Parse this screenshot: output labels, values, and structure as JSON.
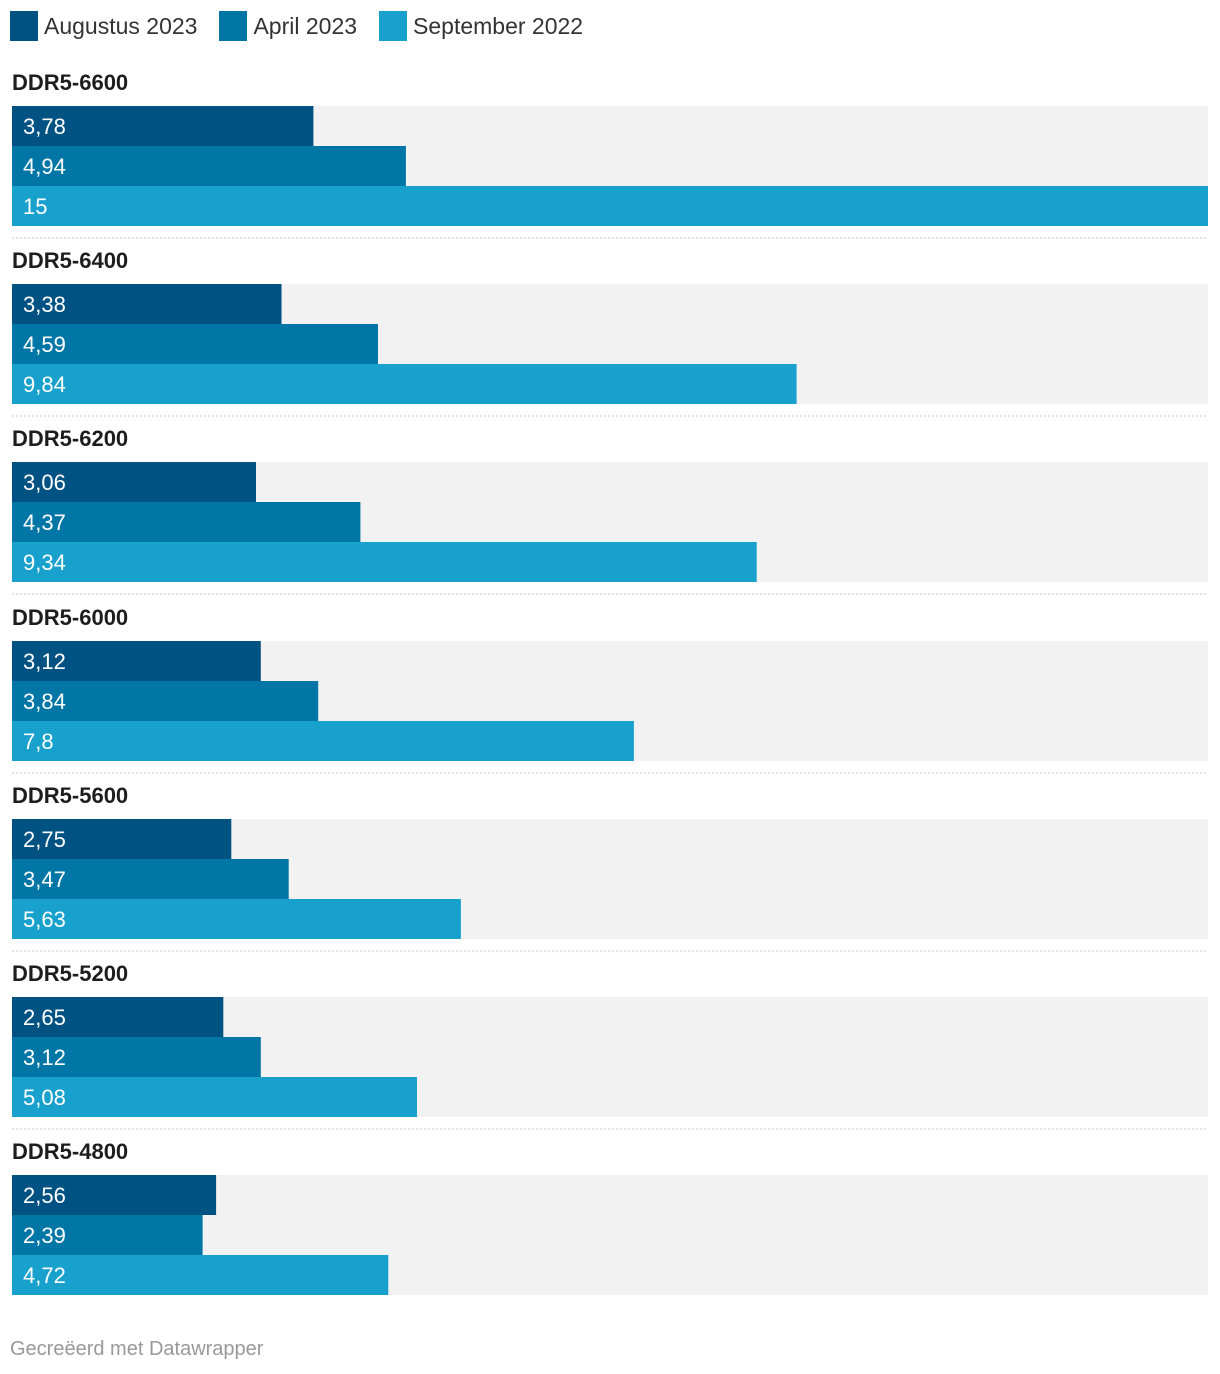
{
  "chart_data": {
    "type": "bar",
    "orientation": "horizontal",
    "colors": {
      "Augustus 2023": "#005282",
      "April 2023": "#0076a6",
      "September 2022": "#18a1cd",
      "background": "#f2f2f2"
    },
    "series": [
      {
        "name": "Augustus 2023",
        "values": [
          3.78,
          3.38,
          3.06,
          3.12,
          2.75,
          2.65,
          2.56
        ],
        "labels": [
          "3,78",
          "3,38",
          "3,06",
          "3,12",
          "2,75",
          "2,65",
          "2,56"
        ]
      },
      {
        "name": "April 2023",
        "values": [
          4.94,
          4.59,
          4.37,
          3.84,
          3.47,
          3.12,
          2.39
        ],
        "labels": [
          "4,94",
          "4,59",
          "4,37",
          "3,84",
          "3,47",
          "3,12",
          "2,39"
        ]
      },
      {
        "name": "September 2022",
        "values": [
          15,
          9.84,
          9.34,
          7.8,
          5.63,
          5.08,
          4.72
        ],
        "labels": [
          "15",
          "9,84",
          "9,34",
          "7,8",
          "5,63",
          "5,08",
          "4,72"
        ]
      }
    ],
    "categories": [
      "DDR5-6600",
      "DDR5-6400",
      "DDR5-6200",
      "DDR5-6000",
      "DDR5-5600",
      "DDR5-5200",
      "DDR5-4800"
    ],
    "xlim": [
      0,
      15
    ],
    "legend": "top-left",
    "grid": false
  },
  "footer": {
    "credit": "Gecreëerd met Datawrapper"
  }
}
